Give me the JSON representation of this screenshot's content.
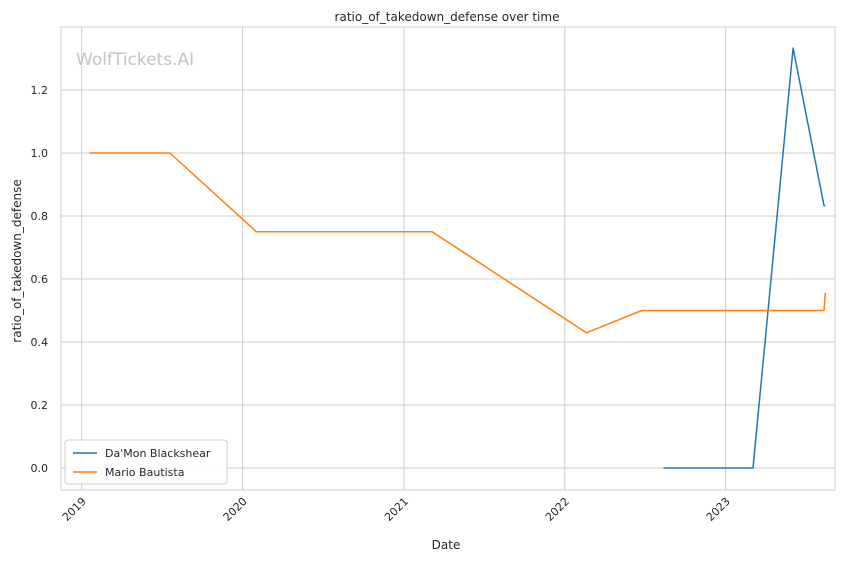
{
  "chart_data": {
    "type": "line",
    "title": "ratio_of_takedown_defense over time",
    "xlabel": "Date",
    "ylabel": "ratio_of_takedown_defense",
    "watermark": "WolfTickets.AI",
    "x_ticks": [
      "2019",
      "2020",
      "2021",
      "2022",
      "2023"
    ],
    "y_ticks": [
      "0.0",
      "0.2",
      "0.4",
      "0.6",
      "0.8",
      "1.0",
      "1.2"
    ],
    "xlim": [
      "2018-11-15",
      "2023-09-06"
    ],
    "ylim": [
      -0.07,
      1.4
    ],
    "grid": true,
    "legend_position": "lower-left",
    "series": [
      {
        "name": "Da'Mon Blackshear",
        "color": "#1f77b4",
        "points": [
          {
            "x": "2022-08-13",
            "y": 0.0
          },
          {
            "x": "2023-03-04",
            "y": 0.0
          },
          {
            "x": "2023-06-03",
            "y": 1.333
          },
          {
            "x": "2023-08-12",
            "y": 0.833
          },
          {
            "x": "2023-08-15",
            "y": 0.833
          }
        ]
      },
      {
        "name": "Mario Bautista",
        "color": "#ff7f0e",
        "points": [
          {
            "x": "2019-01-19",
            "y": 1.0
          },
          {
            "x": "2019-07-20",
            "y": 1.0
          },
          {
            "x": "2020-02-01",
            "y": 0.75
          },
          {
            "x": "2021-03-06",
            "y": 0.75
          },
          {
            "x": "2022-02-19",
            "y": 0.429
          },
          {
            "x": "2022-06-25",
            "y": 0.5
          },
          {
            "x": "2023-08-12",
            "y": 0.5
          },
          {
            "x": "2023-08-15",
            "y": 0.556
          }
        ]
      }
    ]
  }
}
